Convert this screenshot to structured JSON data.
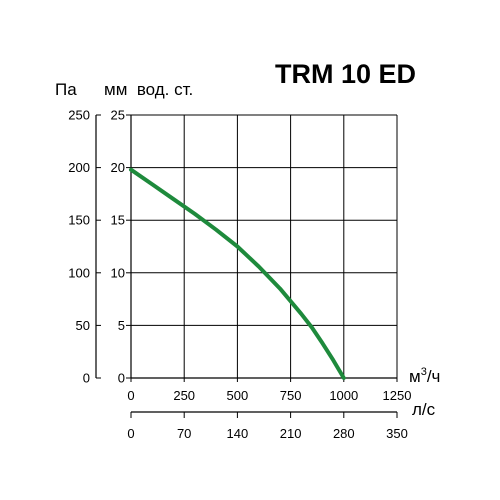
{
  "chart_data": {
    "type": "line",
    "title": "TRM 10 ED",
    "left_axis_unit": "Па",
    "right_axis_unit": "мм  вод. ст.",
    "x_unit_primary": "м",
    "x_unit_primary_sup": "3",
    "x_unit_primary_tail": "/ч",
    "x_unit_secondary": "л/с",
    "y_pa_ticks": [
      "0",
      "50",
      "100",
      "150",
      "200",
      "250"
    ],
    "y_mm_ticks": [
      "0",
      "5",
      "10",
      "15",
      "20",
      "25"
    ],
    "x_m3h_ticks": [
      "0",
      "250",
      "500",
      "750",
      "1000",
      "1250"
    ],
    "x_ls_ticks": [
      "0",
      "70",
      "140",
      "210",
      "280",
      "350"
    ],
    "x_range": [
      0,
      1250
    ],
    "y_range": [
      0,
      25
    ],
    "grid": true,
    "series": [
      {
        "color": "#1e8a3c",
        "x": [
          0,
          100,
          200,
          300,
          400,
          500,
          600,
          700,
          800,
          850,
          900,
          950,
          1000
        ],
        "y": [
          19.8,
          18.4,
          17.0,
          15.6,
          14.1,
          12.5,
          10.6,
          8.5,
          6.1,
          4.8,
          3.3,
          1.7,
          0
        ]
      }
    ]
  }
}
